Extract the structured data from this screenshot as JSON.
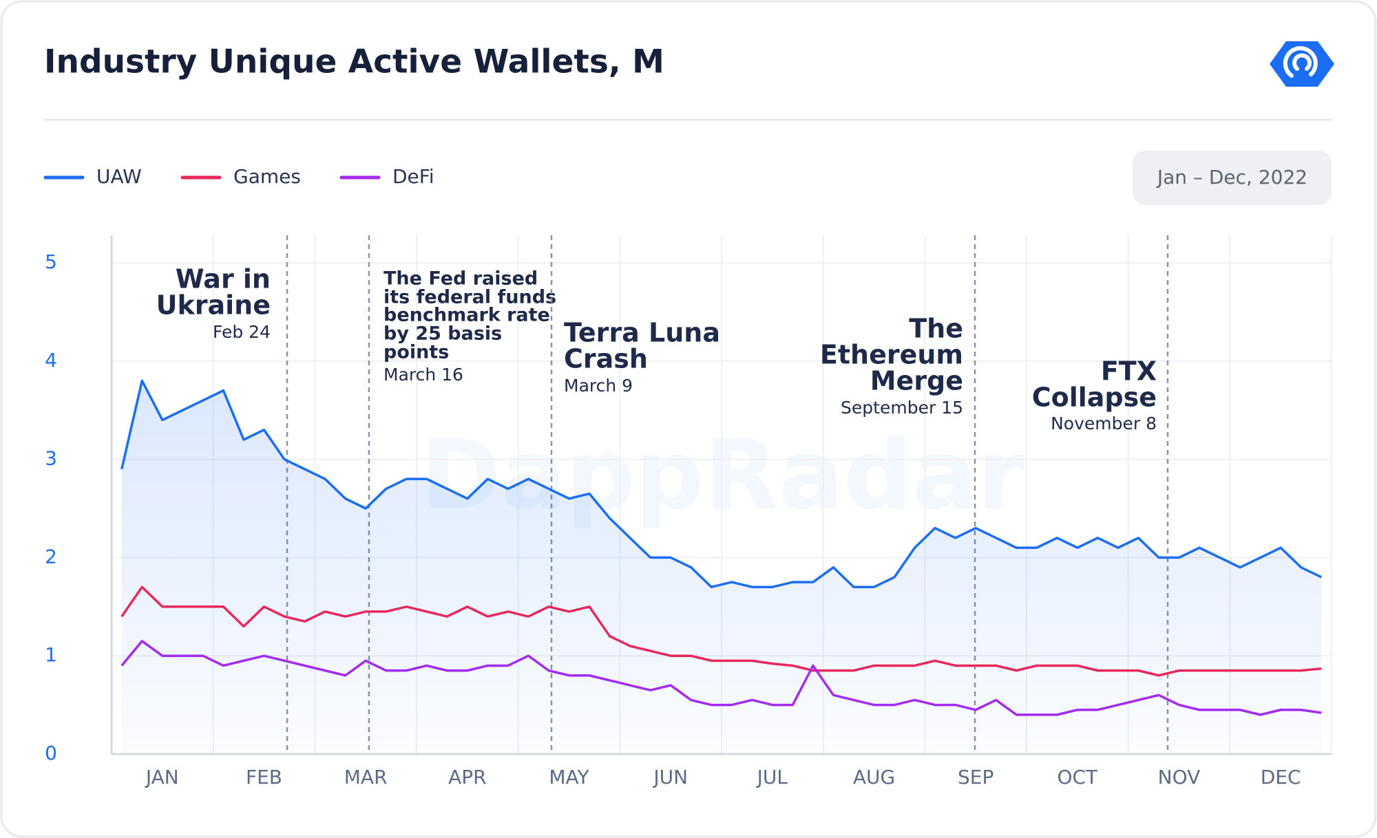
{
  "chart_data": {
    "type": "line",
    "title": "Industry Unique Active Wallets, M",
    "date_range": "Jan – Dec, 2022",
    "watermark": "DappRadar",
    "categories": [
      null,
      null,
      "JAN",
      null,
      null,
      null,
      null,
      "FEB",
      null,
      null,
      null,
      null,
      "MAR",
      null,
      null,
      null,
      null,
      "APR",
      null,
      null,
      null,
      null,
      "MAY",
      null,
      null,
      null,
      null,
      "JUN",
      null,
      null,
      null,
      null,
      "JUL",
      null,
      null,
      null,
      null,
      "AUG",
      null,
      null,
      null,
      null,
      "SEP",
      null,
      null,
      null,
      null,
      "OCT",
      null,
      null,
      null,
      null,
      "NOV",
      null,
      null,
      null,
      null,
      "DEC",
      null,
      null
    ],
    "series": [
      {
        "name": "UAW",
        "color": "#1b6ef3",
        "values": [
          2.9,
          3.8,
          3.4,
          3.5,
          3.6,
          3.7,
          3.2,
          3.3,
          3.0,
          2.9,
          2.8,
          2.6,
          2.5,
          2.7,
          2.8,
          2.8,
          2.7,
          2.6,
          2.8,
          2.7,
          2.8,
          2.7,
          2.6,
          2.65,
          2.4,
          2.2,
          2.0,
          2.0,
          1.9,
          1.7,
          1.75,
          1.7,
          1.7,
          1.75,
          1.75,
          1.9,
          1.7,
          1.7,
          1.8,
          2.1,
          2.3,
          2.2,
          2.3,
          2.2,
          2.1,
          2.1,
          2.2,
          2.1,
          2.2,
          2.1,
          2.2,
          2.0,
          2.0,
          2.1,
          2.0,
          1.9,
          2.0,
          2.1,
          1.9,
          1.8
        ]
      },
      {
        "name": "Games",
        "color": "#e8285a",
        "values": [
          1.4,
          1.7,
          1.5,
          1.5,
          1.5,
          1.5,
          1.3,
          1.5,
          1.4,
          1.35,
          1.45,
          1.4,
          1.45,
          1.45,
          1.5,
          1.45,
          1.4,
          1.5,
          1.4,
          1.45,
          1.4,
          1.5,
          1.45,
          1.5,
          1.2,
          1.1,
          1.05,
          1.0,
          1.0,
          0.95,
          0.95,
          0.95,
          0.92,
          0.9,
          0.85,
          0.85,
          0.85,
          0.9,
          0.9,
          0.9,
          0.95,
          0.9,
          0.9,
          0.9,
          0.85,
          0.9,
          0.9,
          0.9,
          0.85,
          0.85,
          0.85,
          0.8,
          0.85,
          0.85,
          0.85,
          0.85,
          0.85,
          0.85,
          0.85,
          0.87
        ]
      },
      {
        "name": "DeFi",
        "color": "#a32bf0",
        "values": [
          0.9,
          1.15,
          1.0,
          1.0,
          1.0,
          0.9,
          0.95,
          1.0,
          0.95,
          0.9,
          0.85,
          0.8,
          0.95,
          0.85,
          0.85,
          0.9,
          0.85,
          0.85,
          0.9,
          0.9,
          1.0,
          0.85,
          0.8,
          0.8,
          0.75,
          0.7,
          0.65,
          0.7,
          0.55,
          0.5,
          0.5,
          0.55,
          0.5,
          0.5,
          0.9,
          0.6,
          0.55,
          0.5,
          0.5,
          0.55,
          0.5,
          0.5,
          0.45,
          0.55,
          0.4,
          0.4,
          0.4,
          0.45,
          0.45,
          0.5,
          0.55,
          0.6,
          0.5,
          0.45,
          0.45,
          0.45,
          0.4,
          0.45,
          0.45,
          0.42
        ]
      }
    ],
    "ylim": [
      0,
      5.28
    ],
    "yticks": [
      0,
      1,
      2,
      3,
      4,
      5
    ],
    "grid": true,
    "annotations": [
      {
        "lines": [
          "War in",
          "Ukraine"
        ],
        "date": "Feb 24"
      },
      {
        "lines": [
          "The Fed raised",
          "its federal funds",
          "benchmark rate",
          "by 25 basis",
          "points"
        ],
        "date": "March 16"
      },
      {
        "lines": [
          "Terra Luna",
          "Crash"
        ],
        "date": "March 9"
      },
      {
        "lines": [
          "The",
          "Ethereum",
          "Merge"
        ],
        "date": "September 15"
      },
      {
        "lines": [
          "FTX",
          "Collapse"
        ],
        "date": "November 8"
      }
    ]
  }
}
